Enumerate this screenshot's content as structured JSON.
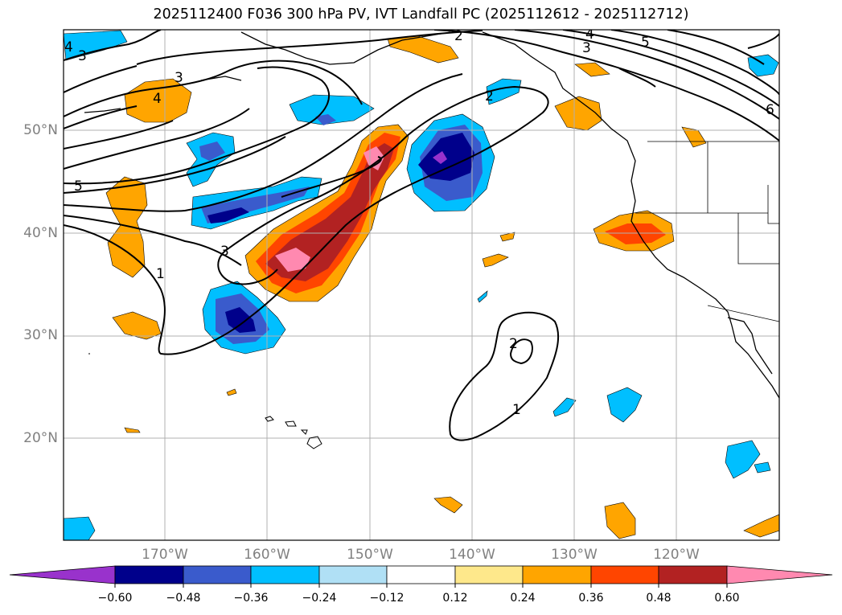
{
  "title": "2025112400 F036 300 hPa PV, IVT Landfall PC (2025112612 - 2025112712)",
  "map": {
    "lat_labels": [
      "50°N",
      "40°N",
      "30°N",
      "20°N"
    ],
    "lon_labels": [
      "170°W",
      "160°W",
      "150°W",
      "140°W",
      "130°W",
      "120°W"
    ],
    "pv_contour_labels": [
      "1",
      "1",
      "2",
      "2",
      "2",
      "3",
      "3",
      "3",
      "3",
      "4",
      "4",
      "4",
      "5",
      "5",
      "6"
    ]
  },
  "colorbar": {
    "ticks": [
      "−0.60",
      "−0.48",
      "−0.36",
      "−0.24",
      "−0.12",
      "0.12",
      "0.24",
      "0.36",
      "0.48",
      "0.60"
    ],
    "colors": [
      "#9932cc",
      "#00008b",
      "#3a5bcc",
      "#00bfff",
      "#b0e0f5",
      "#ffffff",
      "#fee88b",
      "#ffa500",
      "#ff4500",
      "#b22222",
      "#ff89b0"
    ]
  }
}
